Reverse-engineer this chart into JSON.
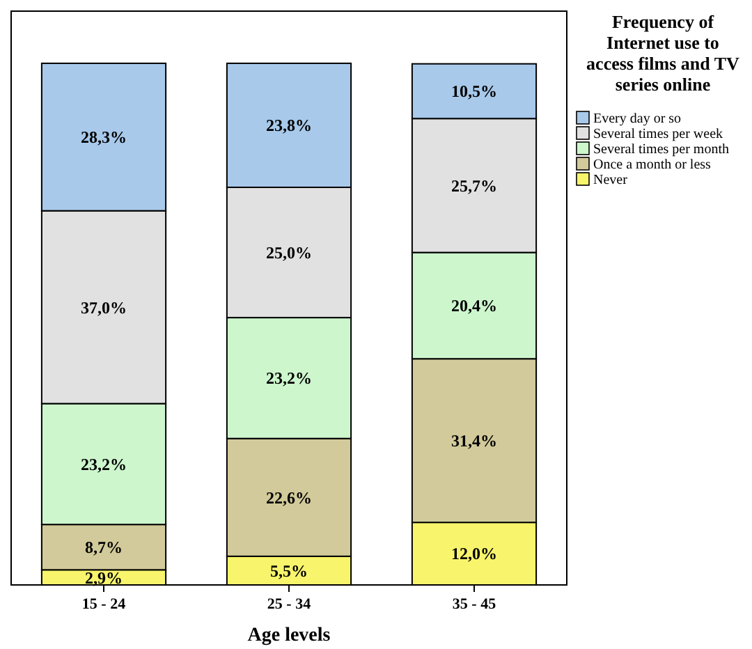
{
  "chart_data": {
    "type": "bar",
    "stacked": true,
    "xlabel": "Age levels",
    "legend_title": "Frequency of Internet use to access films and TV series online",
    "legend": "right",
    "categories": [
      "15 - 24",
      "25 - 34",
      "35 - 45"
    ],
    "series": [
      {
        "name": "Never",
        "color": "#f8f56c",
        "values": [
          2.9,
          5.5,
          12.0
        ],
        "value_labels": [
          "2,9%",
          "5,5%",
          "12,0%"
        ]
      },
      {
        "name": "Once a month or less",
        "color": "#d2ca9a",
        "values": [
          8.7,
          22.6,
          31.4
        ],
        "value_labels": [
          "8,7%",
          "22,6%",
          "31,4%"
        ]
      },
      {
        "name": "Several times per month",
        "color": "#cdf6cd",
        "values": [
          23.2,
          23.2,
          20.4
        ],
        "value_labels": [
          "23,2%",
          "23,2%",
          "20,4%"
        ]
      },
      {
        "name": "Several times per week",
        "color": "#e1e1e1",
        "values": [
          37.0,
          25.0,
          25.7
        ],
        "value_labels": [
          "37,0%",
          "25,0%",
          "25,7%"
        ]
      },
      {
        "name": "Every day or so",
        "color": "#a8c9ea",
        "values": [
          28.3,
          23.8,
          10.5
        ],
        "value_labels": [
          "28,3%",
          "23,8%",
          "10,5%"
        ]
      }
    ]
  }
}
